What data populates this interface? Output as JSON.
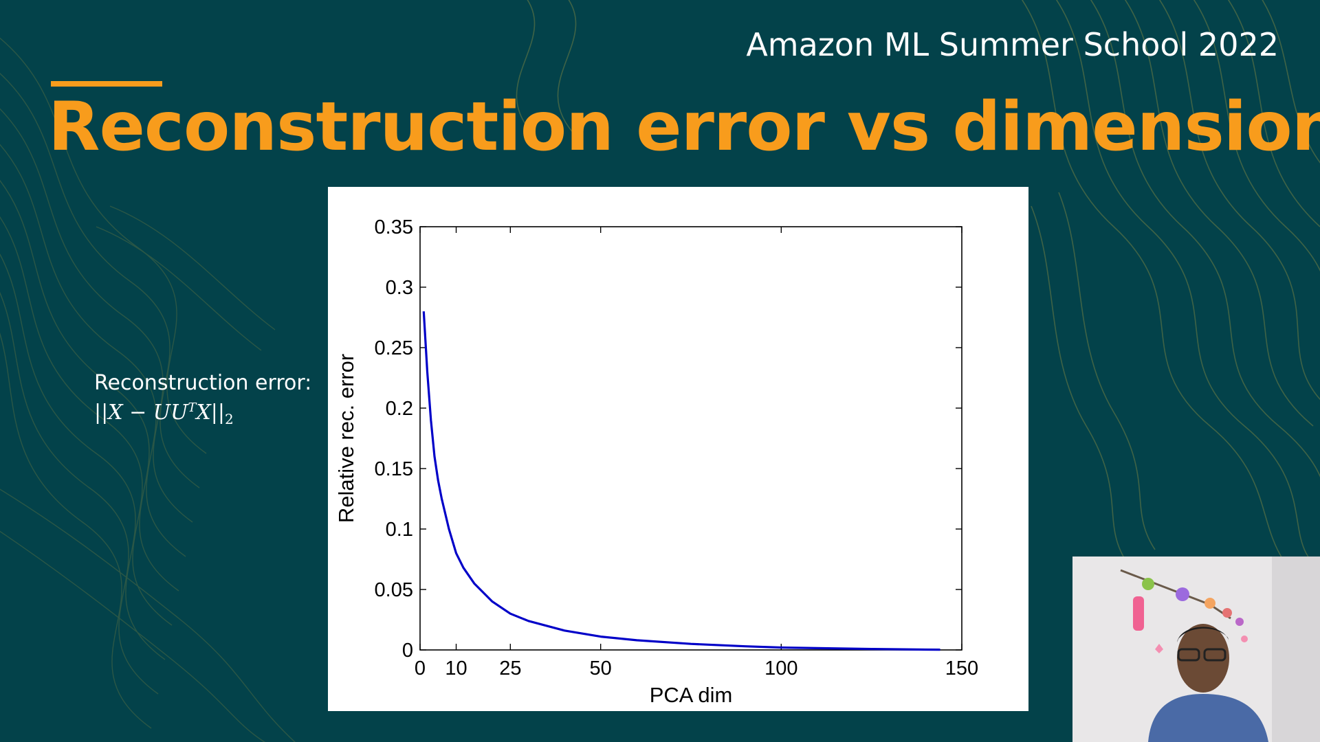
{
  "slide": {
    "event_title": "Amazon ML Summer School 2022",
    "title": "Reconstruction error vs dimensions",
    "accent_color": "#f89c1c",
    "background_color": "#03424a"
  },
  "formula": {
    "label": "Reconstruction error:",
    "expression": "||X − UUᵀX||₂"
  },
  "chart_data": {
    "type": "line",
    "xlabel": "PCA dim",
    "ylabel": "Relative rec. error",
    "xlim": [
      0,
      150
    ],
    "ylim": [
      0,
      0.35
    ],
    "x_ticks": [
      0,
      10,
      25,
      50,
      100,
      150
    ],
    "y_ticks": [
      0,
      0.05,
      0.1,
      0.15,
      0.2,
      0.25,
      0.3,
      0.35
    ],
    "grid": false,
    "line_color": "#0000c8",
    "series": [
      {
        "x": [
          1,
          2,
          3,
          4,
          5,
          6,
          8,
          10,
          12,
          15,
          20,
          25,
          30,
          40,
          50,
          60,
          75,
          90,
          100,
          110,
          125,
          140,
          144
        ],
        "y": [
          0.28,
          0.23,
          0.19,
          0.16,
          0.14,
          0.125,
          0.1,
          0.08,
          0.068,
          0.055,
          0.04,
          0.03,
          0.024,
          0.016,
          0.011,
          0.008,
          0.005,
          0.003,
          0.002,
          0.0015,
          0.0008,
          0.0003,
          0.0002
        ]
      }
    ]
  },
  "webcam": {
    "label": "presenter-video"
  }
}
